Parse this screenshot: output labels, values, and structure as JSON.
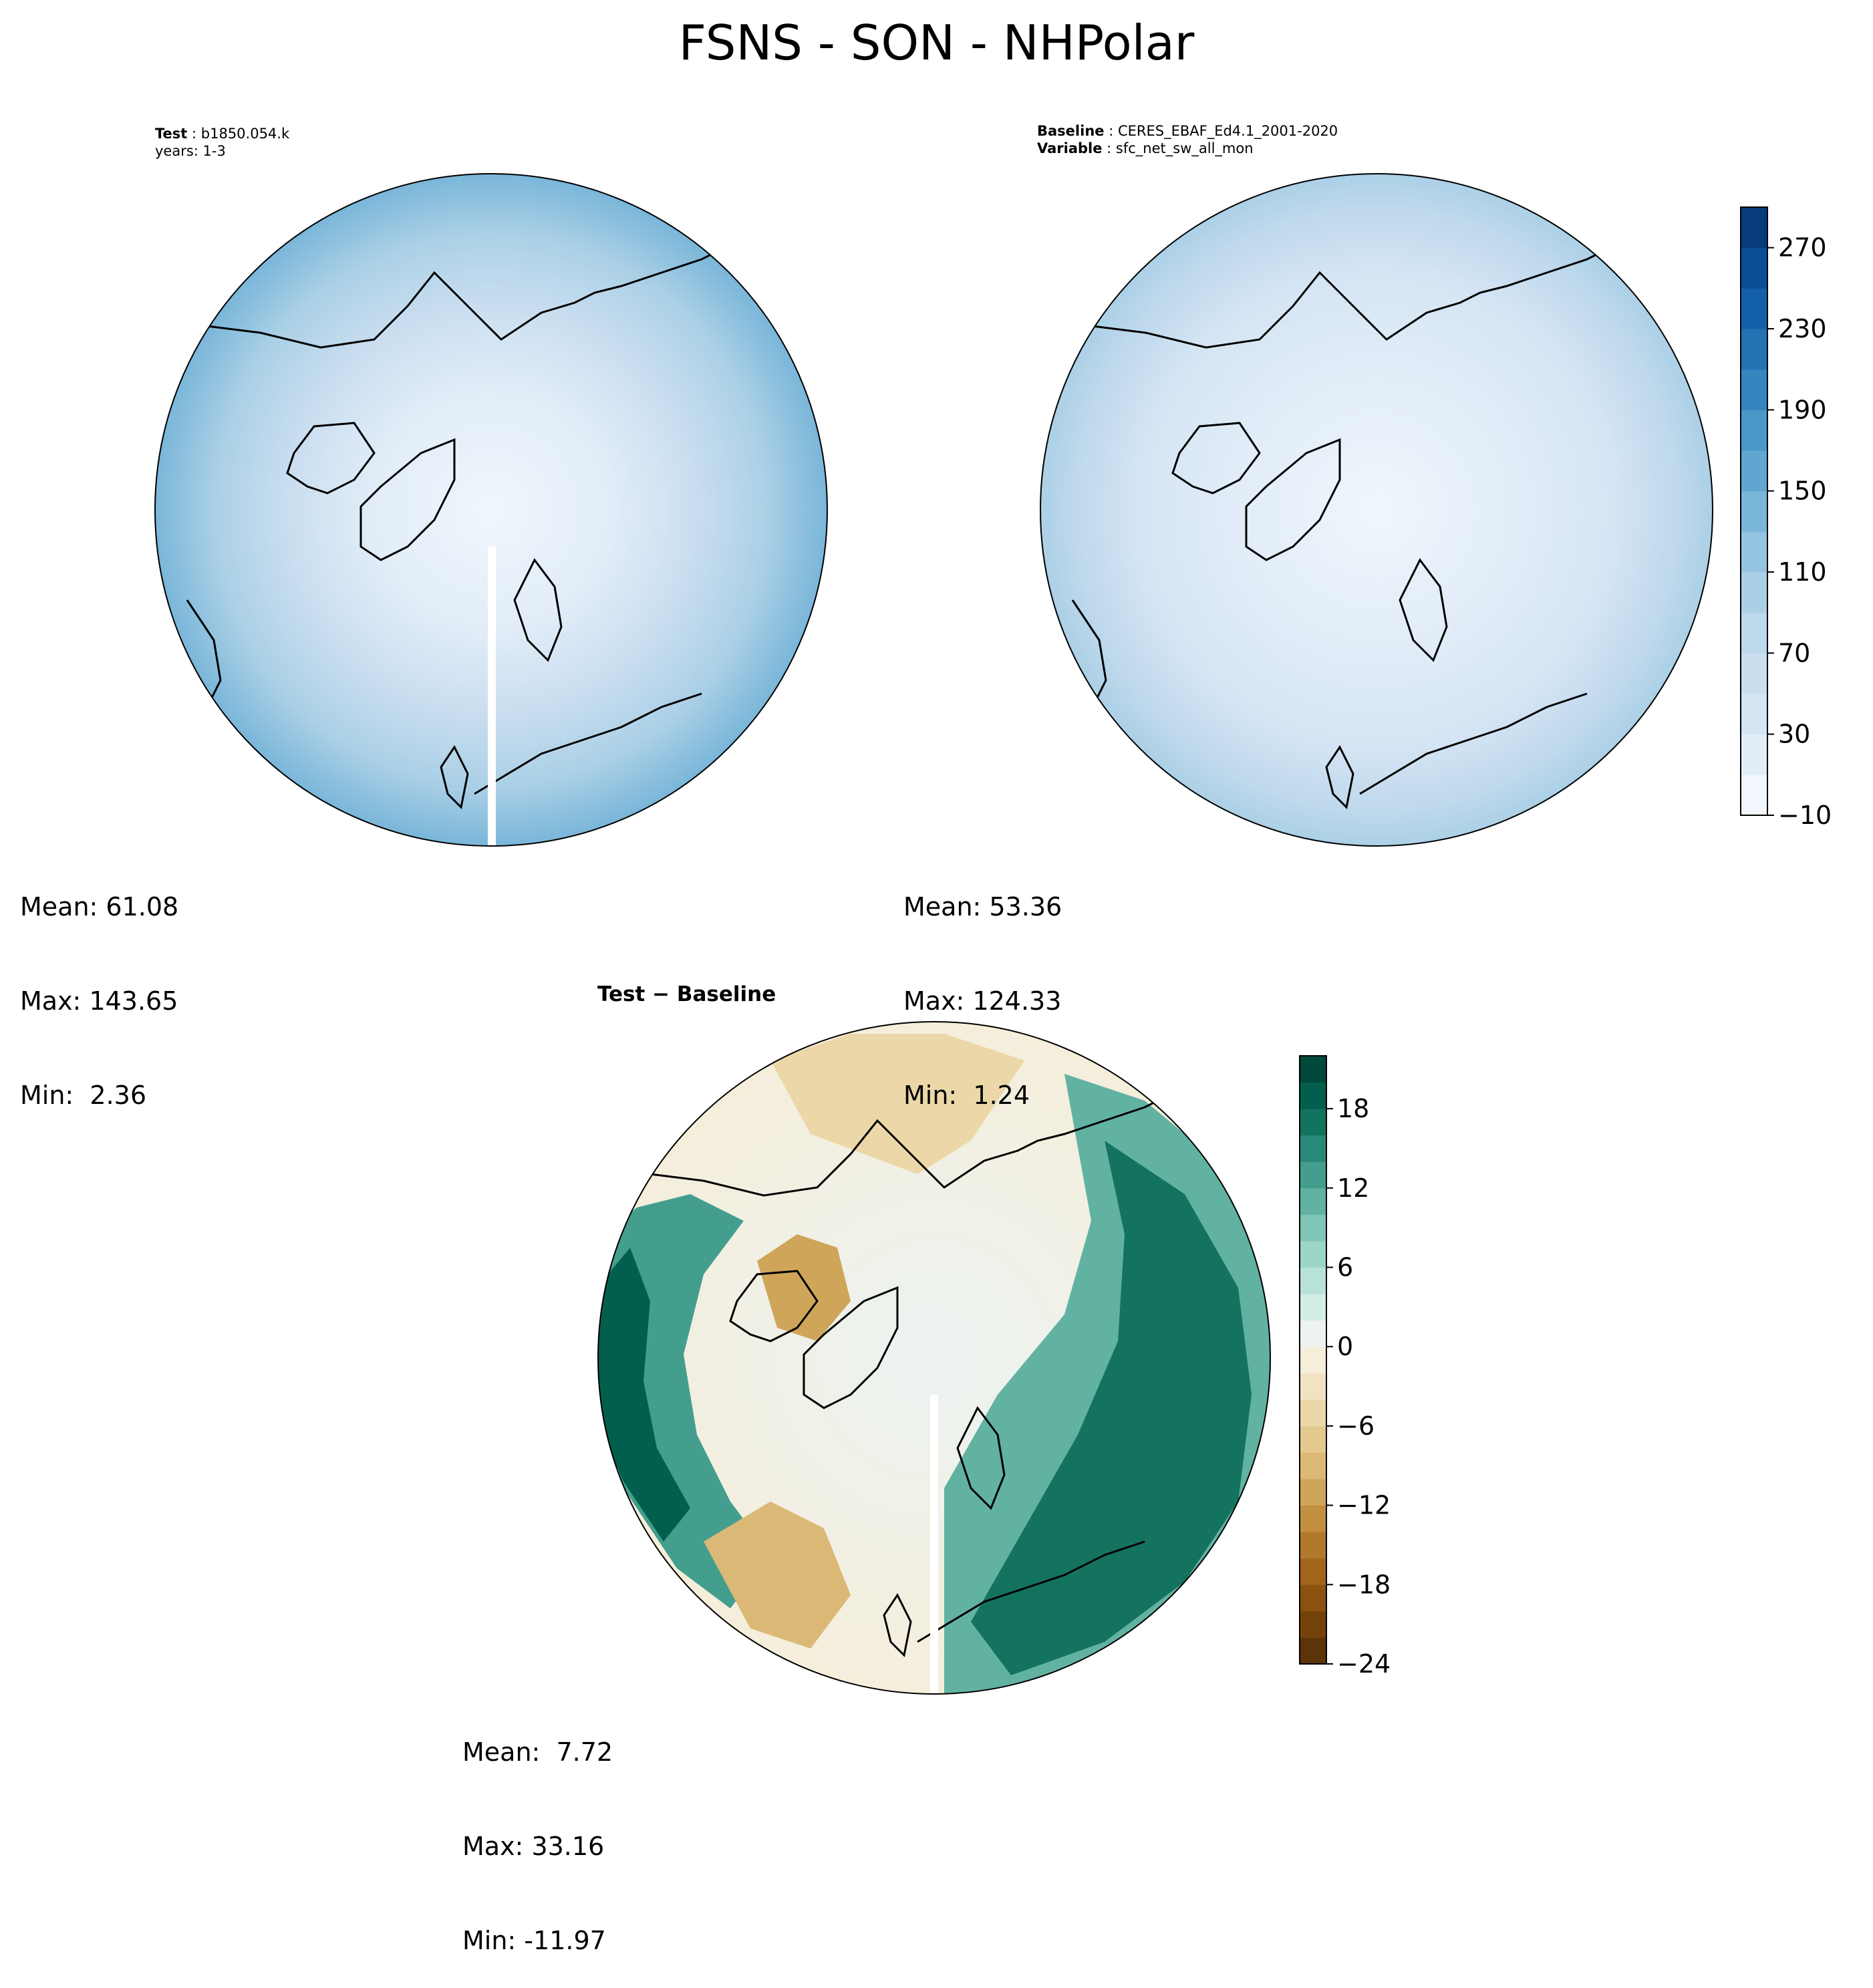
{
  "figure": {
    "title": "FSNS - SON - NHPolar"
  },
  "panels": {
    "test": {
      "key1": "Test",
      "val1": "b1850.054.k",
      "line2": "years: 1-3",
      "stats": {
        "mean": "Mean: 61.08",
        "max": "Max: 143.65",
        "min": "Min:  2.36"
      }
    },
    "baseline": {
      "key1": "Baseline",
      "val1": "CERES_EBAF_Ed4.1_2001-2020",
      "key2": "Variable",
      "val2": "sfc_net_sw_all_mon",
      "stats": {
        "mean": "Mean: 53.36",
        "max": "Max: 124.33",
        "min": "Min:  1.24"
      }
    },
    "diff": {
      "title": "Test − Baseline",
      "stats": {
        "mean": "Mean:  7.72",
        "max": "Max: 33.16",
        "min": "Min: -11.97"
      }
    }
  },
  "colorbars": {
    "top": {
      "cmap": "Blues",
      "levels": [
        -10,
        10,
        30,
        50,
        70,
        90,
        110,
        130,
        150,
        170,
        190,
        210,
        230,
        250,
        270,
        290
      ],
      "colors": [
        "#f2f7fd",
        "#e2edf8",
        "#d6e5f4",
        "#cadef0",
        "#bed8ec",
        "#abd0e6",
        "#94c4df",
        "#7ab6d9",
        "#5fa6d1",
        "#4a98c9",
        "#3585bf",
        "#2372b4",
        "#1460a8",
        "#0a4f96",
        "#083b7c"
      ],
      "tick_labels": [
        "−10",
        "30",
        "70",
        "110",
        "150",
        "190",
        "230",
        "270"
      ],
      "tick_values": [
        -10,
        30,
        70,
        110,
        150,
        190,
        230,
        270
      ]
    },
    "diff": {
      "cmap": "BrBG",
      "levels": [
        -24,
        -22,
        -20,
        -18,
        -16,
        -14,
        -12,
        -10,
        -8,
        -6,
        -4,
        -2,
        0,
        2,
        4,
        6,
        8,
        10,
        12,
        14,
        16,
        18,
        20,
        22
      ],
      "colors": [
        "#5c3407",
        "#744209",
        "#8a510f",
        "#a0641b",
        "#b2782c",
        "#c28e40",
        "#cfa55a",
        "#dbb875",
        "#e4c98e",
        "#ecd7a8",
        "#f1e3c1",
        "#f5eedb",
        "#ecf3f1",
        "#d2ece6",
        "#b8e2d8",
        "#9bd5c8",
        "#7fc6b6",
        "#62b2a2",
        "#449e8e",
        "#2a8879",
        "#14735f",
        "#035f4d",
        "#01493b"
      ],
      "tick_labels": [
        "−24",
        "−18",
        "−12",
        "−6",
        "0",
        "6",
        "12",
        "18"
      ],
      "tick_values": [
        -24,
        -18,
        -12,
        -6,
        0,
        6,
        12,
        18
      ]
    }
  }
}
